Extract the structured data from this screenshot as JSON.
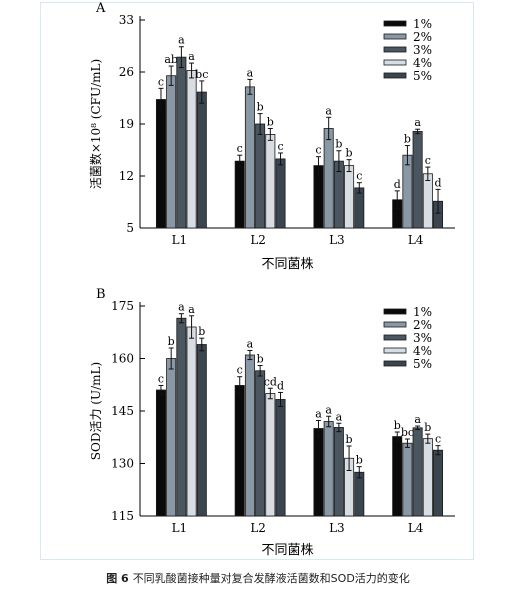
{
  "colors": {
    "series": [
      "#0a0a0a",
      "#8a98a5",
      "#4a5660",
      "#d7dde2",
      "#3b454f"
    ],
    "bar_outline": "#1a1a1a",
    "axis": "#000000",
    "frame_border": "#d9e7ef"
  },
  "caption": {
    "number": "图 6",
    "text": "不同乳酸菌接种量对复合发酵液活菌数和SOD活力的变化"
  },
  "chart_data": [
    {
      "panel_label": "A",
      "type": "bar",
      "xlabel": "不同菌株",
      "ylabel": "活菌数×10⁸ (CFU/mL)",
      "ylim": [
        5,
        33
      ],
      "yticks": [
        5,
        12,
        19,
        26,
        33
      ],
      "categories": [
        "L1",
        "L2",
        "L3",
        "L4"
      ],
      "legend_position": "top-right",
      "series": [
        {
          "name": "1%",
          "values": [
            22.3,
            14.0,
            13.4,
            8.8
          ],
          "errors": [
            1.5,
            0.8,
            1.2,
            1.2
          ],
          "letters": [
            "c",
            "c",
            "c",
            "d"
          ]
        },
        {
          "name": "2%",
          "values": [
            25.5,
            24.0,
            18.4,
            14.8
          ],
          "errors": [
            1.3,
            1.0,
            1.5,
            1.3
          ],
          "letters": [
            "ab",
            "a",
            "a",
            "b"
          ]
        },
        {
          "name": "3%",
          "values": [
            28.0,
            19.0,
            14.0,
            18.0
          ],
          "errors": [
            1.4,
            1.4,
            1.4,
            0.3
          ],
          "letters": [
            "a",
            "b",
            "b",
            "a"
          ]
        },
        {
          "name": "4%",
          "values": [
            26.2,
            17.6,
            13.4,
            12.3
          ],
          "errors": [
            1.0,
            0.8,
            0.8,
            0.9
          ],
          "letters": [
            "a",
            "b",
            "b",
            "c"
          ]
        },
        {
          "name": "5%",
          "values": [
            23.3,
            14.3,
            10.4,
            8.6
          ],
          "errors": [
            1.5,
            0.8,
            0.7,
            1.6
          ],
          "letters": [
            "bc",
            "c",
            "c",
            "d"
          ]
        }
      ]
    },
    {
      "panel_label": "B",
      "type": "bar",
      "xlabel": "不同菌株",
      "ylabel": "SOD活力 (U/mL)",
      "ylim": [
        115,
        175
      ],
      "yticks": [
        115,
        130,
        145,
        160,
        175
      ],
      "categories": [
        "L1",
        "L2",
        "L3",
        "L4"
      ],
      "legend_position": "top-right",
      "series": [
        {
          "name": "1%",
          "values": [
            151.0,
            152.3,
            140.0,
            137.7
          ],
          "errors": [
            1.3,
            2.5,
            2.3,
            1.3
          ],
          "letters": [
            "c",
            "c",
            "a",
            "b"
          ]
        },
        {
          "name": "2%",
          "values": [
            160.0,
            161.0,
            142.0,
            135.8
          ],
          "errors": [
            3.0,
            1.3,
            1.5,
            1.2
          ],
          "letters": [
            "b",
            "a",
            "a",
            "bc"
          ]
        },
        {
          "name": "3%",
          "values": [
            171.5,
            156.5,
            140.3,
            140.2
          ],
          "errors": [
            1.3,
            1.5,
            1.2,
            0.5
          ],
          "letters": [
            "a",
            "b",
            "a",
            "a"
          ]
        },
        {
          "name": "4%",
          "values": [
            169.0,
            150.0,
            131.5,
            137.1
          ],
          "errors": [
            3.2,
            1.5,
            3.5,
            1.3
          ],
          "letters": [
            "a",
            "cd",
            "b",
            "b"
          ]
        },
        {
          "name": "5%",
          "values": [
            164.0,
            148.3,
            127.5,
            133.8
          ],
          "errors": [
            1.8,
            2.0,
            1.6,
            1.3
          ],
          "letters": [
            "b",
            "d",
            "b",
            "c"
          ]
        }
      ]
    }
  ]
}
